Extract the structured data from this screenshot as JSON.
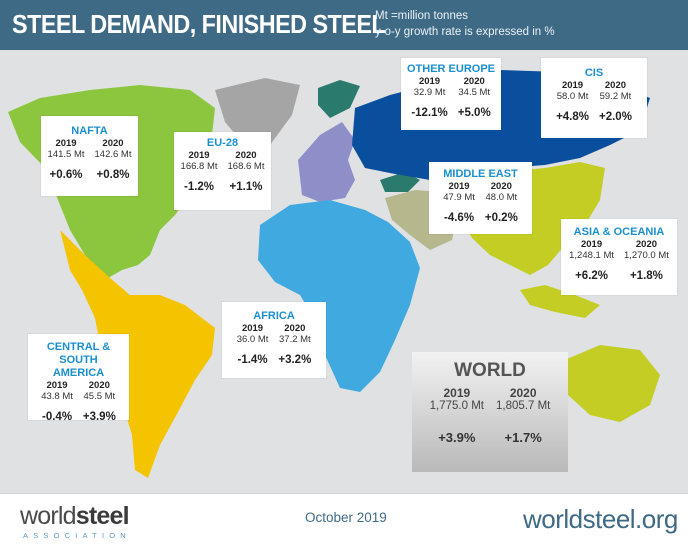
{
  "header": {
    "title": "STEEL DEMAND, FINISHED STEEL",
    "units_line1": "Mt =million tonnes",
    "units_line2": "y-o-y growth rate is expressed in %"
  },
  "regions": {
    "nafta": {
      "name": "NAFTA",
      "y1": "2019",
      "y2": "2020",
      "v1": "141.5 Mt",
      "v2": "142.6 Mt",
      "g1": "+0.6%",
      "g2": "+0.8%",
      "color": "#8cc63f"
    },
    "eu28": {
      "name": "EU-28",
      "y1": "2019",
      "y2": "2020",
      "v1": "166.8 Mt",
      "v2": "168.6 Mt",
      "g1": "-1.2%",
      "g2": "+1.1%",
      "color": "#8e8fc8"
    },
    "other_europe": {
      "name": "OTHER EUROPE",
      "y1": "2019",
      "y2": "2020",
      "v1": "32.9 Mt",
      "v2": "34.5 Mt",
      "g1": "-12.1%",
      "g2": "+5.0%",
      "color": "#2a7a6e"
    },
    "cis": {
      "name": "CIS",
      "y1": "2019",
      "y2": "2020",
      "v1": "58.0 Mt",
      "v2": "59.2 Mt",
      "g1": "+4.8%",
      "g2": "+2.0%",
      "color": "#0a4f9e"
    },
    "middle_east": {
      "name": "MIDDLE EAST",
      "y1": "2019",
      "y2": "2020",
      "v1": "47.9 Mt",
      "v2": "48.0 Mt",
      "g1": "-4.6%",
      "g2": "+0.2%",
      "color": "#b7b78e"
    },
    "asia_oceania": {
      "name": "ASIA & OCEANIA",
      "y1": "2019",
      "y2": "2020",
      "v1": "1,248.1 Mt",
      "v2": "1,270.0 Mt",
      "g1": "+6.2%",
      "g2": "+1.8%",
      "color": "#c3cd23"
    },
    "africa": {
      "name": "AFRICA",
      "y1": "2019",
      "y2": "2020",
      "v1": "36.0 Mt",
      "v2": "37.2 Mt",
      "g1": "-1.4%",
      "g2": "+3.2%",
      "color": "#3fa9e0"
    },
    "csa": {
      "name_line1": "CENTRAL & SOUTH",
      "name_line2": "AMERICA",
      "y1": "2019",
      "y2": "2020",
      "v1": "43.8 Mt",
      "v2": "45.5 Mt",
      "g1": "-0.4%",
      "g2": "+3.9%",
      "color": "#f5c400"
    }
  },
  "world": {
    "name": "WORLD",
    "y1": "2019",
    "y2": "2020",
    "v1": "1,775.0 Mt",
    "v2": "1,805.7 Mt",
    "g1": "+3.9%",
    "g2": "+1.7%"
  },
  "footer": {
    "logo_part1": "world",
    "logo_part2": "steel",
    "logo_sub": "ASSOCIATION",
    "date": "October 2019",
    "site": "worldsteel.org"
  },
  "colors": {
    "header": "#3e6a86",
    "region_name": "#1a8fd0",
    "map_bg": "#dfe1e3",
    "greenland": "#a5a5a5"
  }
}
